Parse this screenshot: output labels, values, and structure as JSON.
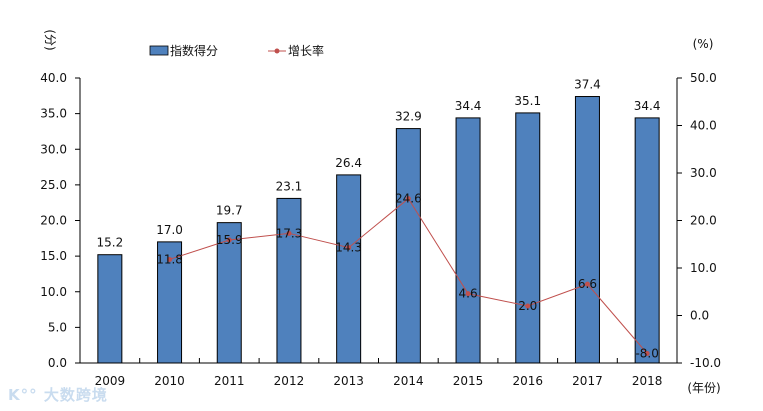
{
  "chart_data": {
    "type": "bar+line",
    "categories": [
      "2009",
      "2010",
      "2011",
      "2012",
      "2013",
      "2014",
      "2015",
      "2016",
      "2017",
      "2018"
    ],
    "series": [
      {
        "name": "指数得分",
        "type": "bar",
        "axis": "left",
        "color": "#4f81bd",
        "values": [
          15.2,
          17.0,
          19.7,
          23.1,
          26.4,
          32.9,
          34.4,
          35.1,
          37.4,
          34.4
        ]
      },
      {
        "name": "增长率",
        "type": "line",
        "axis": "right",
        "color": "#c0504d",
        "values": [
          null,
          11.8,
          15.9,
          17.3,
          14.3,
          24.6,
          4.6,
          2.0,
          6.6,
          -8.0
        ]
      }
    ],
    "left_axis": {
      "label": "(分)",
      "range": [
        0,
        40
      ],
      "ticks": [
        "0.0",
        "5.0",
        "10.0",
        "15.0",
        "20.0",
        "25.0",
        "30.0",
        "35.0",
        "40.0"
      ]
    },
    "right_axis": {
      "label": "(%)",
      "range": [
        -10,
        50
      ],
      "ticks": [
        "-10.0",
        "0.0",
        "10.0",
        "20.0",
        "30.0",
        "40.0",
        "50.0"
      ]
    },
    "xlabel": "(年份)",
    "legend_position": "top",
    "grid": false
  },
  "watermark": "大数跨境"
}
